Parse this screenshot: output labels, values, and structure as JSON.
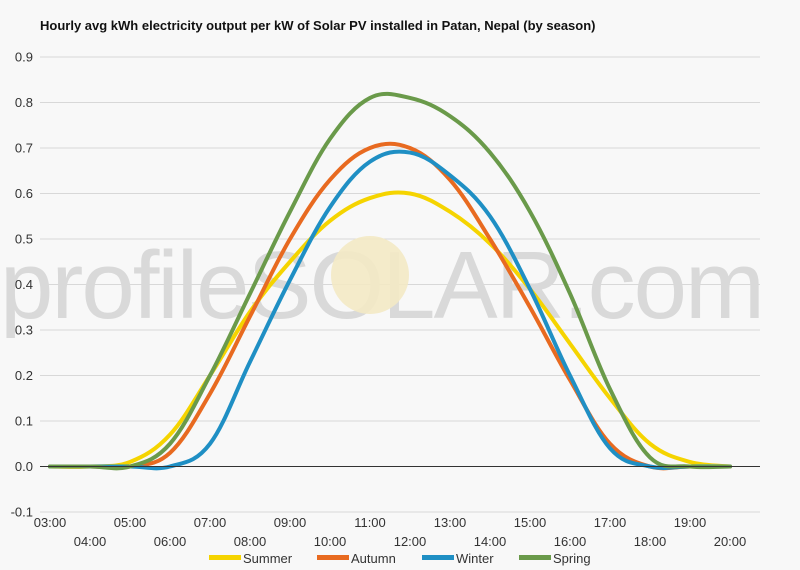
{
  "chart_data": {
    "type": "line",
    "title": "Hourly avg kWh electricity output per kW of Solar PV installed in Patan, Nepal (by season)",
    "xlabel": "",
    "ylabel": "",
    "ylim": [
      -0.1,
      0.9
    ],
    "yticks": [
      "-0.1",
      "0.0",
      "0.1",
      "0.2",
      "0.3",
      "0.4",
      "0.5",
      "0.6",
      "0.7",
      "0.8",
      "0.9"
    ],
    "x_hours": [
      3,
      4,
      5,
      6,
      7,
      8,
      9,
      10,
      11,
      12,
      13,
      14,
      15,
      16,
      17,
      18,
      19,
      20
    ],
    "xticks": [
      "03:00",
      "04:00",
      "05:00",
      "06:00",
      "07:00",
      "08:00",
      "09:00",
      "10:00",
      "11:00",
      "12:00",
      "13:00",
      "14:00",
      "15:00",
      "16:00",
      "17:00",
      "18:00",
      "19:00",
      "20:00"
    ],
    "grid": true,
    "legend_position": "bottom",
    "watermark": "profileSOLAR.com",
    "series": [
      {
        "name": "Summer",
        "color": "#f5d400",
        "values": [
          0.0,
          0.0,
          0.01,
          0.07,
          0.2,
          0.34,
          0.45,
          0.54,
          0.59,
          0.6,
          0.56,
          0.49,
          0.39,
          0.27,
          0.15,
          0.05,
          0.01,
          0.0
        ]
      },
      {
        "name": "Autumn",
        "color": "#e86a20",
        "values": [
          0.0,
          0.0,
          0.0,
          0.03,
          0.16,
          0.33,
          0.5,
          0.63,
          0.7,
          0.7,
          0.63,
          0.5,
          0.35,
          0.19,
          0.05,
          0.0,
          0.0,
          0.0
        ]
      },
      {
        "name": "Winter",
        "color": "#1f8fc4",
        "values": [
          0.0,
          0.0,
          0.0,
          0.0,
          0.05,
          0.23,
          0.41,
          0.57,
          0.67,
          0.69,
          0.64,
          0.55,
          0.39,
          0.2,
          0.04,
          0.0,
          0.0,
          0.0
        ]
      },
      {
        "name": "Spring",
        "color": "#6a9a4a",
        "values": [
          0.0,
          0.0,
          0.0,
          0.05,
          0.2,
          0.38,
          0.56,
          0.72,
          0.81,
          0.81,
          0.77,
          0.69,
          0.56,
          0.38,
          0.17,
          0.02,
          0.0,
          0.0
        ]
      }
    ]
  }
}
